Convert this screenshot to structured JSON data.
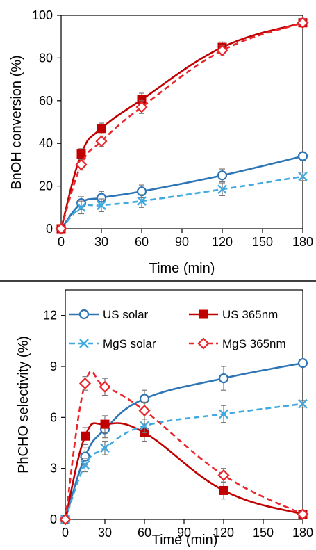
{
  "chart_data": [
    {
      "type": "line",
      "title": "",
      "xlabel": "Time (min)",
      "ylabel": "BnOH conversion (%)",
      "xlim": [
        0,
        180
      ],
      "ylim": [
        0,
        100
      ],
      "xticks": [
        0,
        30,
        60,
        90,
        120,
        150,
        180
      ],
      "yticks": [
        0,
        20,
        40,
        60,
        80,
        100
      ],
      "grid": false,
      "x": [
        0,
        15,
        30,
        60,
        120,
        180
      ],
      "series": [
        {
          "key": "us_solar",
          "color": "#2e75b6",
          "dash": "solid",
          "marker": "circle-open",
          "values": [
            0,
            12,
            14.5,
            17.5,
            25,
            34
          ],
          "errors": [
            0,
            3,
            3,
            3,
            3,
            2
          ]
        },
        {
          "key": "mgs_solar",
          "color": "#3fa9e0",
          "dash": "dashed",
          "marker": "x",
          "values": [
            0,
            10,
            11,
            13,
            18.5,
            24.5
          ],
          "errors": [
            0,
            3,
            3,
            3,
            3,
            2
          ]
        },
        {
          "key": "us_365",
          "color": "#c00000",
          "dash": "solid",
          "marker": "square-filled",
          "values": [
            0,
            35,
            47,
            60.5,
            85,
            96.5
          ],
          "errors": [
            0,
            2.5,
            2.5,
            3,
            2.5,
            1.5
          ]
        },
        {
          "key": "mgs_365",
          "color": "#e8262b",
          "dash": "dashed",
          "marker": "diamond-open",
          "values": [
            0,
            30,
            41,
            57,
            83.5,
            96.5
          ],
          "errors": [
            0,
            2.5,
            2.5,
            3,
            2.5,
            1.5
          ]
        }
      ]
    },
    {
      "type": "line",
      "title": "",
      "xlabel": "Time (min)",
      "ylabel": "PhCHO selectivity (%)",
      "xlim": [
        0,
        180
      ],
      "ylim": [
        0,
        13.5
      ],
      "xticks": [
        0,
        30,
        60,
        90,
        120,
        150,
        180
      ],
      "yticks": [
        0,
        3,
        6,
        9,
        12
      ],
      "grid": false,
      "legend": "top, two columns",
      "x": [
        0,
        15,
        30,
        60,
        120,
        180
      ],
      "series": [
        {
          "key": "us_solar",
          "name": "US solar",
          "color": "#2e75b6",
          "dash": "solid",
          "marker": "circle-open",
          "values": [
            0,
            3.7,
            5.3,
            7.1,
            8.3,
            9.2
          ],
          "errors": [
            0,
            0.5,
            0.5,
            0.5,
            0.7,
            0.2
          ]
        },
        {
          "key": "us_365",
          "name": "US 365nm",
          "color": "#c00000",
          "dash": "solid",
          "marker": "square-filled",
          "values": [
            0,
            4.9,
            5.6,
            5.1,
            1.7,
            0.3
          ],
          "errors": [
            0,
            0.5,
            0.5,
            0.5,
            0.5,
            0.1
          ]
        },
        {
          "key": "mgs_solar",
          "name": "MgS solar",
          "color": "#3fa9e0",
          "dash": "dashed",
          "marker": "x",
          "values": [
            0,
            3.2,
            4.2,
            5.5,
            6.2,
            6.8
          ],
          "errors": [
            0,
            0.4,
            0.4,
            0.4,
            0.5,
            0.2
          ]
        },
        {
          "key": "mgs_365",
          "name": "MgS 365nm",
          "color": "#e8262b",
          "dash": "dashed",
          "marker": "diamond-open",
          "values": [
            0,
            8.0,
            7.8,
            6.4,
            2.6,
            0.3
          ],
          "errors": [
            0,
            0.4,
            0.5,
            0.5,
            0.4,
            0.1
          ]
        }
      ]
    }
  ]
}
